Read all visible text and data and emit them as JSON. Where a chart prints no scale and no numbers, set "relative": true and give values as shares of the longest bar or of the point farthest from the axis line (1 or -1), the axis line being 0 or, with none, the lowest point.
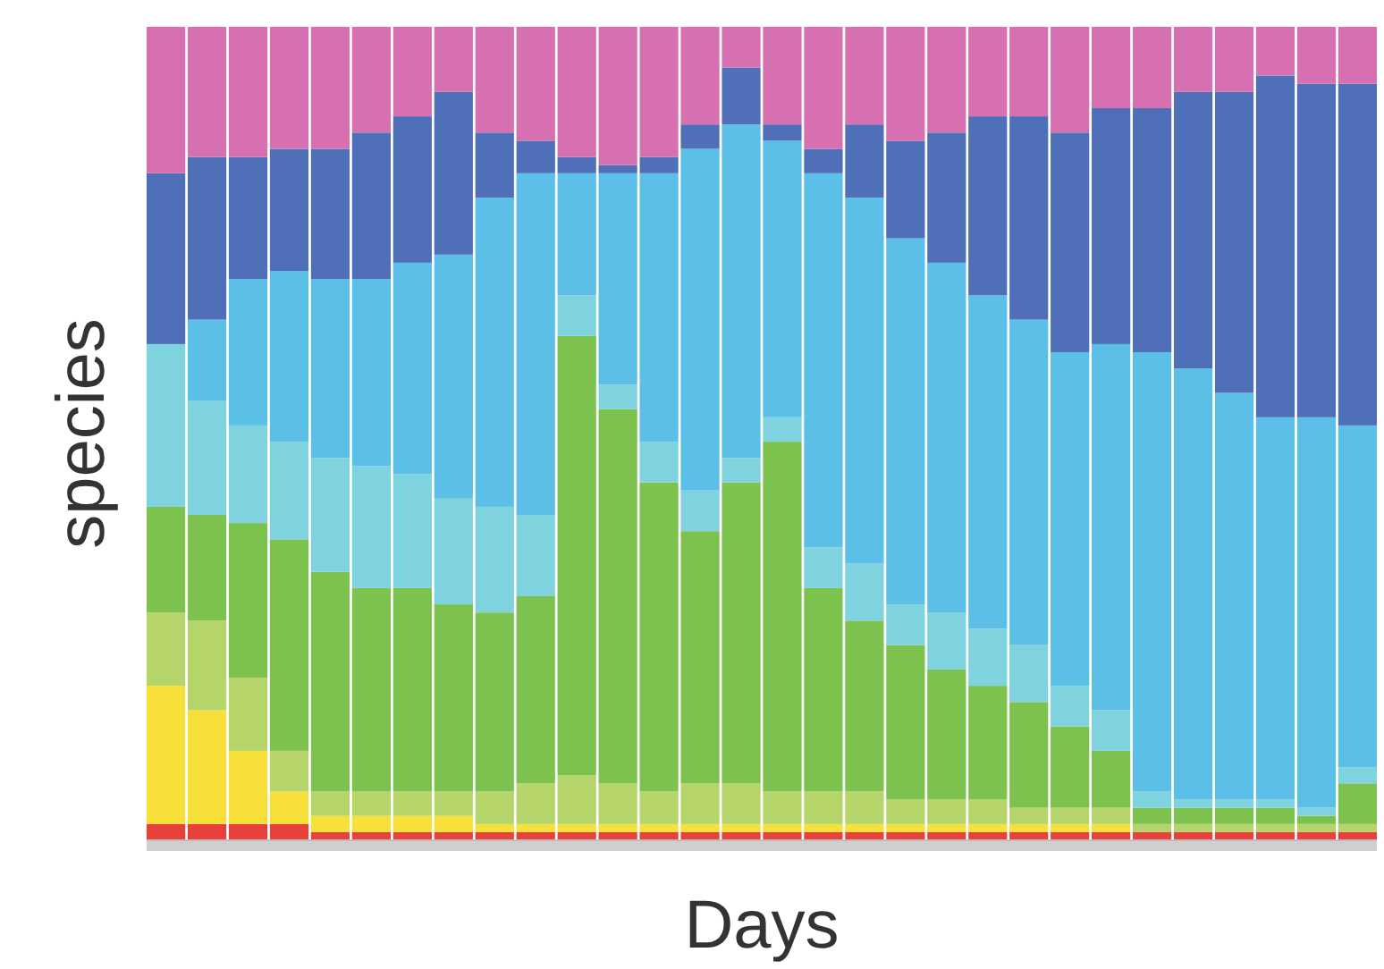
{
  "chart_data": {
    "type": "bar",
    "stacked": true,
    "relative": true,
    "xlabel": "Days",
    "ylabel": "species",
    "categories": [
      null,
      null,
      null,
      null,
      null,
      null,
      null,
      null,
      null,
      null,
      null,
      null,
      null,
      null,
      null,
      null,
      null,
      null,
      null,
      null,
      null,
      null,
      null,
      null,
      null,
      null,
      null,
      null,
      null,
      null
    ],
    "series": [
      {
        "color": "#e8413c",
        "values": [
          0.02,
          0.02,
          0.02,
          0.02,
          0.01,
          0.01,
          0.01,
          0.01,
          0.01,
          0.01,
          0.01,
          0.01,
          0.01,
          0.01,
          0.01,
          0.01,
          0.01,
          0.01,
          0.01,
          0.01,
          0.01,
          0.01,
          0.01,
          0.01,
          0.01,
          0.01,
          0.01,
          0.01,
          0.01,
          0.01
        ]
      },
      {
        "color": "#f7e03a",
        "values": [
          0.17,
          0.14,
          0.09,
          0.04,
          0.02,
          0.02,
          0.02,
          0.02,
          0.01,
          0.01,
          0.01,
          0.01,
          0.01,
          0.01,
          0.01,
          0.01,
          0.01,
          0.01,
          0.01,
          0.01,
          0.01,
          0.01,
          0.01,
          0.01,
          0,
          0,
          0,
          0,
          0,
          0
        ]
      },
      {
        "color": "#b5d46a",
        "values": [
          0.09,
          0.11,
          0.09,
          0.05,
          0.03,
          0.03,
          0.03,
          0.03,
          0.04,
          0.05,
          0.06,
          0.05,
          0.04,
          0.05,
          0.05,
          0.04,
          0.04,
          0.04,
          0.03,
          0.03,
          0.03,
          0.02,
          0.02,
          0.02,
          0.01,
          0.01,
          0.01,
          0.01,
          0.01,
          0.01
        ]
      },
      {
        "color": "#7dc24f",
        "values": [
          0.13,
          0.13,
          0.19,
          0.26,
          0.27,
          0.25,
          0.25,
          0.23,
          0.22,
          0.23,
          0.54,
          0.46,
          0.38,
          0.31,
          0.37,
          0.43,
          0.25,
          0.21,
          0.19,
          0.16,
          0.14,
          0.13,
          0.1,
          0.07,
          0.02,
          0.02,
          0.02,
          0.02,
          0.01,
          0.05
        ]
      },
      {
        "color": "#7fd3df",
        "values": [
          0.2,
          0.14,
          0.12,
          0.12,
          0.14,
          0.15,
          0.14,
          0.13,
          0.13,
          0.1,
          0.05,
          0.03,
          0.05,
          0.05,
          0.03,
          0.03,
          0.05,
          0.07,
          0.05,
          0.07,
          0.07,
          0.07,
          0.05,
          0.05,
          0.02,
          0.01,
          0.01,
          0.01,
          0.01,
          0.02
        ]
      },
      {
        "color": "#5bbfe8",
        "values": [
          0,
          0.1,
          0.18,
          0.21,
          0.22,
          0.23,
          0.26,
          0.3,
          0.38,
          0.42,
          0.15,
          0.26,
          0.33,
          0.42,
          0.41,
          0.34,
          0.46,
          0.45,
          0.45,
          0.43,
          0.41,
          0.4,
          0.41,
          0.45,
          0.54,
          0.53,
          0.5,
          0.47,
          0.48,
          0.42
        ]
      },
      {
        "color": "#4f6fb8",
        "values": [
          0.21,
          0.2,
          0.15,
          0.15,
          0.16,
          0.18,
          0.18,
          0.2,
          0.08,
          0.04,
          0.02,
          0.01,
          0.02,
          0.03,
          0.07,
          0.02,
          0.03,
          0.09,
          0.12,
          0.16,
          0.22,
          0.25,
          0.27,
          0.29,
          0.3,
          0.34,
          0.37,
          0.42,
          0.41,
          0.42
        ]
      },
      {
        "color": "#d770b0",
        "values": [
          0.18,
          0.16,
          0.16,
          0.15,
          0.15,
          0.13,
          0.11,
          0.08,
          0.13,
          0.14,
          0.16,
          0.17,
          0.16,
          0.12,
          0.05,
          0.12,
          0.15,
          0.12,
          0.14,
          0.13,
          0.11,
          0.11,
          0.13,
          0.1,
          0.1,
          0.08,
          0.08,
          0.06,
          0.07,
          0.07
        ]
      }
    ]
  }
}
